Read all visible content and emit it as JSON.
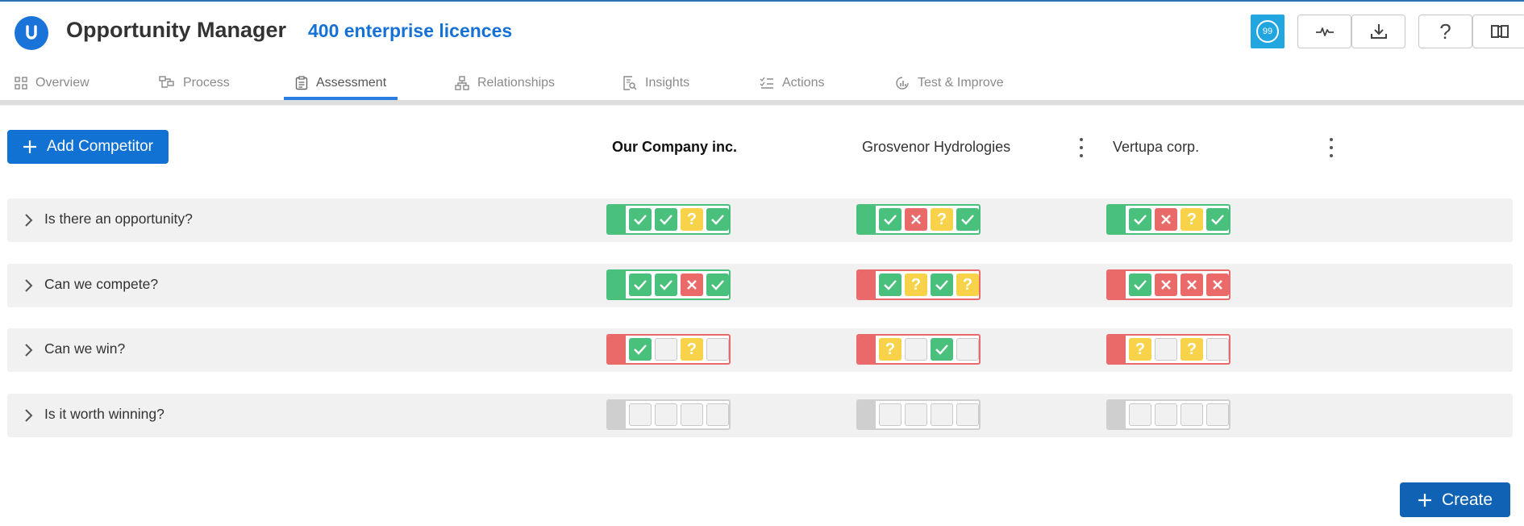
{
  "app": {
    "logo_letter": "U",
    "title": "Opportunity Manager",
    "licences": "400 enterprise licences"
  },
  "header": {
    "notification_count": "99"
  },
  "tabs": [
    {
      "label": "Overview",
      "active": false
    },
    {
      "label": "Process",
      "active": false
    },
    {
      "label": "Assessment",
      "active": true
    },
    {
      "label": "Relationships",
      "active": false
    },
    {
      "label": "Insights",
      "active": false
    },
    {
      "label": "Actions",
      "active": false
    },
    {
      "label": "Test & Improve",
      "active": false
    }
  ],
  "toolbar": {
    "add_competitor_label": "Add Competitor",
    "create_label": "Create"
  },
  "columns": [
    {
      "name": "Our Company inc.",
      "bold": true,
      "has_menu": false
    },
    {
      "name": "Grosvenor Hydrologies",
      "bold": false,
      "has_menu": true
    },
    {
      "name": "Vertupa corp.",
      "bold": false,
      "has_menu": true
    }
  ],
  "questions": [
    {
      "label": "Is there an opportunity?"
    },
    {
      "label": "Can we compete?"
    },
    {
      "label": "Can we win?"
    },
    {
      "label": "Is it worth winning?"
    }
  ],
  "scores": [
    [
      {
        "status": "green",
        "cells": [
          "check",
          "check",
          "q",
          "check"
        ]
      },
      {
        "status": "green",
        "cells": [
          "check",
          "cross",
          "q",
          "check"
        ]
      },
      {
        "status": "green",
        "cells": [
          "check",
          "cross",
          "q",
          "check"
        ]
      }
    ],
    [
      {
        "status": "green",
        "cells": [
          "check",
          "check",
          "cross",
          "check"
        ]
      },
      {
        "status": "red",
        "cells": [
          "check",
          "q",
          "check",
          "q"
        ]
      },
      {
        "status": "red",
        "cells": [
          "check",
          "cross",
          "cross",
          "cross"
        ]
      }
    ],
    [
      {
        "status": "red",
        "cells": [
          "check",
          "empty",
          "q",
          "empty"
        ]
      },
      {
        "status": "red",
        "cells": [
          "q",
          "empty",
          "check",
          "empty"
        ]
      },
      {
        "status": "red",
        "cells": [
          "q",
          "empty",
          "q",
          "empty"
        ]
      }
    ],
    [
      {
        "status": "grey",
        "cells": [
          "empty",
          "empty",
          "empty",
          "empty"
        ]
      },
      {
        "status": "grey",
        "cells": [
          "empty",
          "empty",
          "empty",
          "empty"
        ]
      },
      {
        "status": "grey",
        "cells": [
          "empty",
          "empty",
          "empty",
          "empty"
        ]
      }
    ]
  ],
  "colors": {
    "green": "#4ac07d",
    "red": "#ea6a6a",
    "yellow": "#f8d34a",
    "grey": "#cfcfcf",
    "accent": "#1272d3"
  }
}
